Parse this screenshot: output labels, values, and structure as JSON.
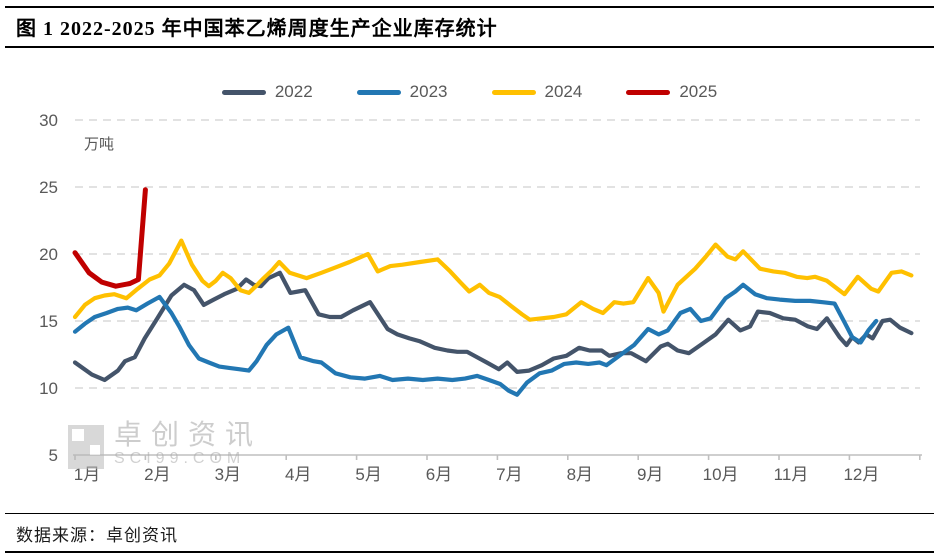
{
  "header": {
    "title": "图 1 2022-2025 年中国苯乙烯周度生产企业库存统计"
  },
  "footer": {
    "source_note": "数据来源：卓创资讯"
  },
  "watermark": {
    "brand": "卓创资讯",
    "domain": "SCI99.COM"
  },
  "chart_data": {
    "type": "line",
    "title": "图 1 2022-2025 年中国苯乙烯周度生产企业库存统计",
    "unit_label": "万吨",
    "xlabel": "",
    "ylabel": "万吨",
    "ylim": [
      5,
      30
    ],
    "y_ticks": [
      5,
      10,
      15,
      20,
      25,
      30
    ],
    "x_tick_labels": [
      "1月",
      "2月",
      "3月",
      "4月",
      "5月",
      "6月",
      "7月",
      "8月",
      "9月",
      "10月",
      "11月",
      "12月"
    ],
    "grid": "horizontal dashed",
    "legend_position": "top",
    "colors": {
      "axis_text": "#595959",
      "gridline": "#d9d9d9",
      "axis_line": "#bfbfbf"
    },
    "series": [
      {
        "name": "2022",
        "color": "#44546A",
        "points": [
          [
            1.0,
            11.9
          ],
          [
            1.24,
            11.0
          ],
          [
            1.42,
            10.6
          ],
          [
            1.61,
            11.3
          ],
          [
            1.71,
            12.0
          ],
          [
            1.85,
            12.3
          ],
          [
            1.99,
            13.7
          ],
          [
            2.17,
            15.2
          ],
          [
            2.37,
            16.9
          ],
          [
            2.55,
            17.7
          ],
          [
            2.69,
            17.3
          ],
          [
            2.83,
            16.2
          ],
          [
            2.97,
            16.6
          ],
          [
            3.12,
            17.0
          ],
          [
            3.3,
            17.4
          ],
          [
            3.43,
            18.1
          ],
          [
            3.54,
            17.7
          ],
          [
            3.64,
            17.6
          ],
          [
            3.75,
            18.2
          ],
          [
            3.91,
            18.6
          ],
          [
            4.06,
            17.1
          ],
          [
            4.17,
            17.2
          ],
          [
            4.27,
            17.3
          ],
          [
            4.46,
            15.5
          ],
          [
            4.62,
            15.3
          ],
          [
            4.78,
            15.3
          ],
          [
            4.95,
            15.8
          ],
          [
            5.19,
            16.4
          ],
          [
            5.44,
            14.4
          ],
          [
            5.58,
            14.0
          ],
          [
            5.75,
            13.7
          ],
          [
            5.89,
            13.5
          ],
          [
            6.11,
            13.0
          ],
          [
            6.29,
            12.8
          ],
          [
            6.43,
            12.7
          ],
          [
            6.57,
            12.7
          ],
          [
            6.71,
            12.3
          ],
          [
            6.85,
            11.9
          ],
          [
            7.02,
            11.4
          ],
          [
            7.14,
            11.9
          ],
          [
            7.28,
            11.2
          ],
          [
            7.45,
            11.3
          ],
          [
            7.63,
            11.7
          ],
          [
            7.8,
            12.2
          ],
          [
            7.98,
            12.4
          ],
          [
            8.16,
            13.0
          ],
          [
            8.31,
            12.8
          ],
          [
            8.48,
            12.8
          ],
          [
            8.59,
            12.4
          ],
          [
            8.76,
            12.6
          ],
          [
            8.9,
            12.6
          ],
          [
            9.11,
            12.0
          ],
          [
            9.32,
            13.1
          ],
          [
            9.42,
            13.3
          ],
          [
            9.56,
            12.8
          ],
          [
            9.72,
            12.6
          ],
          [
            9.91,
            13.3
          ],
          [
            10.1,
            14.0
          ],
          [
            10.28,
            15.1
          ],
          [
            10.45,
            14.3
          ],
          [
            10.59,
            14.6
          ],
          [
            10.7,
            15.7
          ],
          [
            10.87,
            15.6
          ],
          [
            11.06,
            15.2
          ],
          [
            11.23,
            15.1
          ],
          [
            11.41,
            14.6
          ],
          [
            11.54,
            14.4
          ],
          [
            11.68,
            15.2
          ],
          [
            11.86,
            13.8
          ],
          [
            11.96,
            13.2
          ],
          [
            12.04,
            13.8
          ],
          [
            12.13,
            13.4
          ],
          [
            12.24,
            14.0
          ],
          [
            12.33,
            13.7
          ],
          [
            12.47,
            15.0
          ],
          [
            12.58,
            15.1
          ],
          [
            12.72,
            14.5
          ],
          [
            12.88,
            14.1
          ]
        ]
      },
      {
        "name": "2023",
        "color": "#2277B3",
        "points": [
          [
            1.0,
            14.2
          ],
          [
            1.14,
            14.8
          ],
          [
            1.28,
            15.3
          ],
          [
            1.45,
            15.6
          ],
          [
            1.61,
            15.9
          ],
          [
            1.75,
            16.0
          ],
          [
            1.87,
            15.8
          ],
          [
            2.03,
            16.3
          ],
          [
            2.2,
            16.8
          ],
          [
            2.37,
            15.6
          ],
          [
            2.48,
            14.6
          ],
          [
            2.62,
            13.2
          ],
          [
            2.76,
            12.2
          ],
          [
            2.9,
            11.9
          ],
          [
            3.05,
            11.6
          ],
          [
            3.19,
            11.5
          ],
          [
            3.33,
            11.4
          ],
          [
            3.47,
            11.3
          ],
          [
            3.58,
            12.0
          ],
          [
            3.72,
            13.2
          ],
          [
            3.86,
            14.0
          ],
          [
            4.03,
            14.5
          ],
          [
            4.2,
            12.3
          ],
          [
            4.39,
            12.0
          ],
          [
            4.5,
            11.9
          ],
          [
            4.7,
            11.1
          ],
          [
            4.91,
            10.8
          ],
          [
            5.12,
            10.7
          ],
          [
            5.33,
            10.9
          ],
          [
            5.51,
            10.6
          ],
          [
            5.73,
            10.7
          ],
          [
            5.94,
            10.6
          ],
          [
            6.15,
            10.7
          ],
          [
            6.36,
            10.6
          ],
          [
            6.54,
            10.7
          ],
          [
            6.71,
            10.9
          ],
          [
            6.88,
            10.6
          ],
          [
            7.04,
            10.3
          ],
          [
            7.16,
            9.8
          ],
          [
            7.28,
            9.5
          ],
          [
            7.42,
            10.4
          ],
          [
            7.6,
            11.1
          ],
          [
            7.77,
            11.3
          ],
          [
            7.95,
            11.8
          ],
          [
            8.12,
            11.9
          ],
          [
            8.29,
            11.8
          ],
          [
            8.45,
            11.9
          ],
          [
            8.55,
            11.7
          ],
          [
            8.73,
            12.4
          ],
          [
            8.94,
            13.2
          ],
          [
            9.14,
            14.4
          ],
          [
            9.29,
            14.0
          ],
          [
            9.42,
            14.3
          ],
          [
            9.6,
            15.6
          ],
          [
            9.74,
            15.9
          ],
          [
            9.89,
            15.0
          ],
          [
            10.03,
            15.2
          ],
          [
            10.24,
            16.7
          ],
          [
            10.38,
            17.2
          ],
          [
            10.49,
            17.7
          ],
          [
            10.66,
            17.0
          ],
          [
            10.83,
            16.7
          ],
          [
            11.01,
            16.6
          ],
          [
            11.23,
            16.5
          ],
          [
            11.44,
            16.5
          ],
          [
            11.62,
            16.4
          ],
          [
            11.79,
            16.3
          ],
          [
            11.93,
            14.9
          ],
          [
            12.04,
            13.8
          ],
          [
            12.16,
            13.4
          ],
          [
            12.27,
            14.3
          ],
          [
            12.38,
            15.0
          ]
        ]
      },
      {
        "name": "2024",
        "color": "#FFC000",
        "points": [
          [
            1.0,
            15.3
          ],
          [
            1.14,
            16.2
          ],
          [
            1.28,
            16.7
          ],
          [
            1.42,
            16.9
          ],
          [
            1.56,
            17.0
          ],
          [
            1.73,
            16.7
          ],
          [
            1.89,
            17.4
          ],
          [
            2.06,
            18.1
          ],
          [
            2.2,
            18.4
          ],
          [
            2.34,
            19.3
          ],
          [
            2.51,
            21.0
          ],
          [
            2.66,
            19.2
          ],
          [
            2.81,
            18.0
          ],
          [
            2.9,
            17.6
          ],
          [
            3.0,
            18.0
          ],
          [
            3.1,
            18.6
          ],
          [
            3.21,
            18.2
          ],
          [
            3.35,
            17.3
          ],
          [
            3.47,
            17.1
          ],
          [
            3.57,
            17.6
          ],
          [
            3.68,
            18.2
          ],
          [
            3.8,
            18.8
          ],
          [
            3.9,
            19.4
          ],
          [
            4.05,
            18.6
          ],
          [
            4.29,
            18.2
          ],
          [
            4.5,
            18.6
          ],
          [
            4.7,
            19.0
          ],
          [
            4.9,
            19.4
          ],
          [
            5.16,
            20.0
          ],
          [
            5.3,
            18.7
          ],
          [
            5.48,
            19.1
          ],
          [
            5.65,
            19.2
          ],
          [
            5.9,
            19.4
          ],
          [
            6.15,
            19.6
          ],
          [
            6.33,
            18.7
          ],
          [
            6.47,
            17.9
          ],
          [
            6.6,
            17.2
          ],
          [
            6.75,
            17.7
          ],
          [
            6.88,
            17.1
          ],
          [
            7.03,
            16.8
          ],
          [
            7.2,
            16.1
          ],
          [
            7.35,
            15.5
          ],
          [
            7.46,
            15.1
          ],
          [
            7.63,
            15.2
          ],
          [
            7.8,
            15.3
          ],
          [
            7.98,
            15.5
          ],
          [
            8.19,
            16.4
          ],
          [
            8.36,
            15.9
          ],
          [
            8.5,
            15.6
          ],
          [
            8.66,
            16.4
          ],
          [
            8.79,
            16.3
          ],
          [
            8.93,
            16.4
          ],
          [
            9.14,
            18.2
          ],
          [
            9.29,
            17.1
          ],
          [
            9.36,
            15.7
          ],
          [
            9.56,
            17.7
          ],
          [
            9.81,
            18.9
          ],
          [
            9.96,
            19.8
          ],
          [
            10.1,
            20.7
          ],
          [
            10.27,
            19.8
          ],
          [
            10.38,
            19.6
          ],
          [
            10.49,
            20.2
          ],
          [
            10.73,
            18.9
          ],
          [
            10.92,
            18.7
          ],
          [
            11.08,
            18.6
          ],
          [
            11.25,
            18.3
          ],
          [
            11.4,
            18.2
          ],
          [
            11.51,
            18.3
          ],
          [
            11.68,
            18.0
          ],
          [
            11.83,
            17.4
          ],
          [
            11.93,
            17.0
          ],
          [
            12.12,
            18.3
          ],
          [
            12.31,
            17.4
          ],
          [
            12.41,
            17.2
          ],
          [
            12.6,
            18.6
          ],
          [
            12.74,
            18.7
          ],
          [
            12.88,
            18.4
          ]
        ]
      },
      {
        "name": "2025",
        "color": "#C00000",
        "points": [
          [
            1.0,
            20.1
          ],
          [
            1.2,
            18.6
          ],
          [
            1.38,
            17.9
          ],
          [
            1.58,
            17.6
          ],
          [
            1.78,
            17.8
          ],
          [
            1.9,
            18.1
          ],
          [
            2.0,
            24.8
          ]
        ]
      }
    ]
  }
}
